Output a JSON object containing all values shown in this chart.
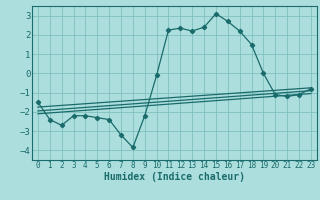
{
  "title": "",
  "xlabel": "Humidex (Indice chaleur)",
  "background_color": "#addede",
  "grid_color": "#80c0c0",
  "line_color": "#1a6b6b",
  "xlim": [
    -0.5,
    23.5
  ],
  "ylim": [
    -4.5,
    3.5
  ],
  "xticks": [
    0,
    1,
    2,
    3,
    4,
    5,
    6,
    7,
    8,
    9,
    10,
    11,
    12,
    13,
    14,
    15,
    16,
    17,
    18,
    19,
    20,
    21,
    22,
    23
  ],
  "yticks": [
    -4,
    -3,
    -2,
    -1,
    0,
    1,
    2,
    3
  ],
  "main_x": [
    0,
    1,
    2,
    3,
    4,
    5,
    6,
    7,
    8,
    9,
    10,
    11,
    12,
    13,
    14,
    15,
    16,
    17,
    18,
    19,
    20,
    21,
    22,
    23
  ],
  "main_y": [
    -1.5,
    -2.4,
    -2.7,
    -2.2,
    -2.2,
    -2.3,
    -2.4,
    -3.2,
    -3.85,
    -2.2,
    -0.1,
    2.25,
    2.35,
    2.2,
    2.4,
    3.1,
    2.7,
    2.2,
    1.5,
    0.0,
    -1.1,
    -1.2,
    -1.1,
    -0.8
  ],
  "line1_x": [
    0,
    23
  ],
  "line1_y": [
    -1.75,
    -0.75
  ],
  "line2_x": [
    0,
    23
  ],
  "line2_y": [
    -1.95,
    -0.9
  ],
  "line3_x": [
    0,
    23
  ],
  "line3_y": [
    -2.1,
    -1.05
  ]
}
